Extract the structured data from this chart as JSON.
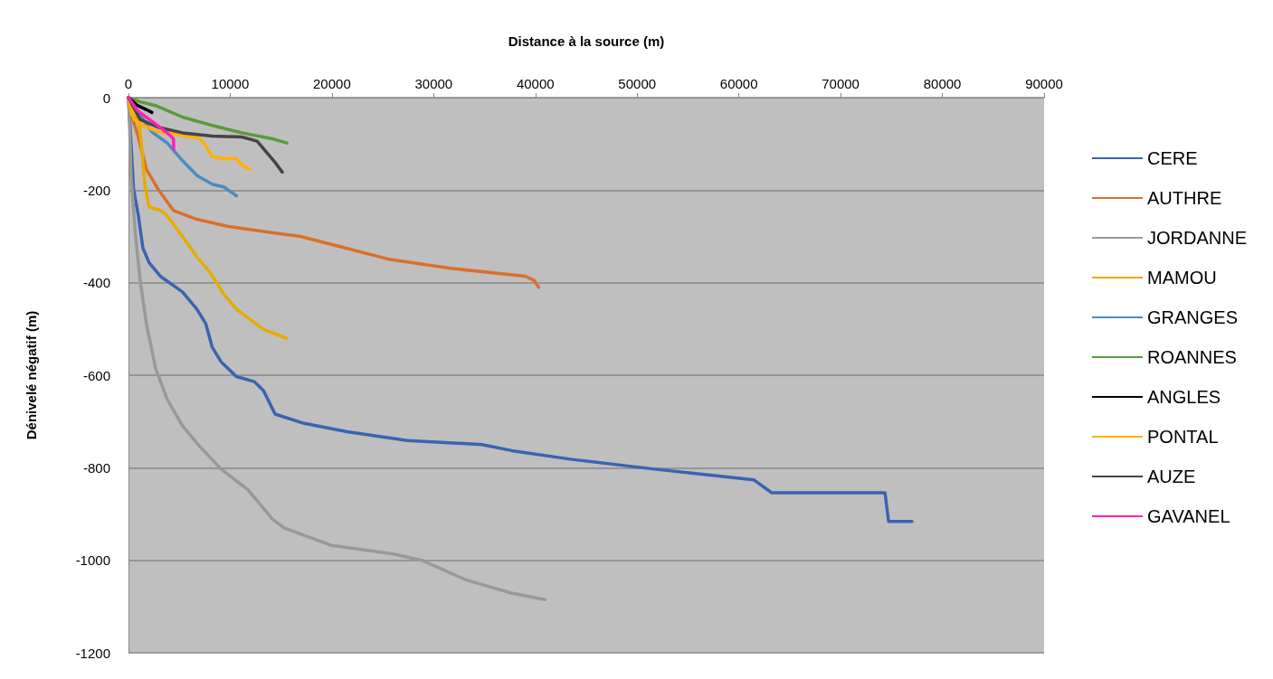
{
  "chart_data": {
    "type": "line",
    "xlabel": "Distance à la source (m)",
    "ylabel": "Dénivelé négatif (m)",
    "xlim": [
      0,
      90000
    ],
    "xticks": [
      0,
      10000,
      20000,
      30000,
      40000,
      50000,
      60000,
      70000,
      80000,
      90000
    ],
    "ylim": [
      -1200,
      0
    ],
    "yticks": [
      -1200,
      -1000,
      -800,
      -600,
      -400,
      -200,
      0
    ],
    "grid": "y",
    "legend": "right",
    "marker": "none",
    "line_style": "solid",
    "series": [
      {
        "name": "CERE",
        "color": "#3a64b0",
        "x": [
          0,
          504,
          973,
          1415,
          2034,
          3183,
          5305,
          6720,
          7604,
          8223,
          9107,
          10610,
          12379,
          13263,
          14412,
          17065,
          21486,
          27410,
          34750,
          37667,
          43591,
          51726,
          61452,
          63220,
          74361,
          74715,
          77016
        ],
        "values": [
          0,
          -198,
          -255,
          -325,
          -357,
          -387,
          -420,
          -457,
          -489,
          -539,
          -571,
          -603,
          -614,
          -633,
          -684,
          -703,
          -722,
          -741,
          -750,
          -763,
          -782,
          -803,
          -826,
          -854,
          -854,
          -916,
          -916
        ]
      },
      {
        "name": "AUTHRE",
        "color": "#d9702c",
        "x": [
          0,
          265,
          884,
          1768,
          2918,
          4421,
          6720,
          9726,
          12467,
          16888,
          21309,
          25730,
          31654,
          38993,
          39877,
          40319
        ],
        "values": [
          0,
          -36,
          -79,
          -155,
          -198,
          -244,
          -263,
          -278,
          -287,
          -300,
          -325,
          -350,
          -369,
          -386,
          -395,
          -410
        ]
      },
      {
        "name": "JORDANNE",
        "color": "#999999",
        "x": [
          0,
          88,
          265,
          707,
          1150,
          1768,
          2653,
          3802,
          5305,
          6720,
          9107,
          11760,
          14147,
          15297,
          19983,
          25907,
          28825,
          33246,
          37667,
          40939
        ],
        "values": [
          0,
          -47,
          -174,
          -301,
          -395,
          -490,
          -584,
          -652,
          -709,
          -747,
          -803,
          -848,
          -911,
          -930,
          -968,
          -986,
          -1000,
          -1043,
          -1071,
          -1085
        ]
      },
      {
        "name": "MAMOU",
        "color": "#e6ac00",
        "x": [
          0,
          265,
          973,
          1326,
          1592,
          2034,
          3183,
          3802,
          5305,
          6720,
          7958,
          9373,
          10610,
          11760,
          13263,
          15562
        ],
        "values": [
          0,
          -36,
          -47,
          -111,
          -187,
          -236,
          -244,
          -255,
          -300,
          -344,
          -376,
          -425,
          -457,
          -476,
          -501,
          -520
        ]
      },
      {
        "name": "GRANGES",
        "color": "#4a8cc4",
        "x": [
          0,
          2299,
          3802,
          5305,
          6720,
          8223,
          9373,
          10610
        ],
        "values": [
          0,
          -74,
          -98,
          -136,
          -168,
          -187,
          -193,
          -212
        ]
      },
      {
        "name": "ROANNES",
        "color": "#5c9a3a",
        "x": [
          0,
          1150,
          2653,
          5305,
          8223,
          11141,
          14147,
          15562
        ],
        "values": [
          0,
          -9,
          -17,
          -42,
          -60,
          -76,
          -89,
          -98
        ]
      },
      {
        "name": "ANGLES",
        "color": "#000000",
        "x": [
          0,
          884,
          1768,
          2299
        ],
        "values": [
          0,
          -17,
          -26,
          -32
        ]
      },
      {
        "name": "PONTAL",
        "color": "#ffb000",
        "x": [
          0,
          530,
          1415,
          2918,
          4686,
          7074,
          7604,
          8223,
          9373,
          10610,
          11141,
          11937
        ],
        "values": [
          0,
          -47,
          -60,
          -74,
          -79,
          -89,
          -104,
          -127,
          -132,
          -132,
          -146,
          -155
        ]
      },
      {
        "name": "AUZE",
        "color": "#454545",
        "x": [
          0,
          1150,
          2918,
          5305,
          8223,
          11141,
          12644,
          13528,
          14412,
          15120
        ],
        "values": [
          0,
          -47,
          -64,
          -76,
          -83,
          -85,
          -94,
          -117,
          -140,
          -161
        ]
      },
      {
        "name": "GAVANEL",
        "color": "#ff1fbf",
        "x": [
          0,
          884,
          2299,
          3802,
          4421,
          4450
        ],
        "values": [
          0,
          -28,
          -51,
          -76,
          -89,
          -111
        ]
      }
    ]
  }
}
